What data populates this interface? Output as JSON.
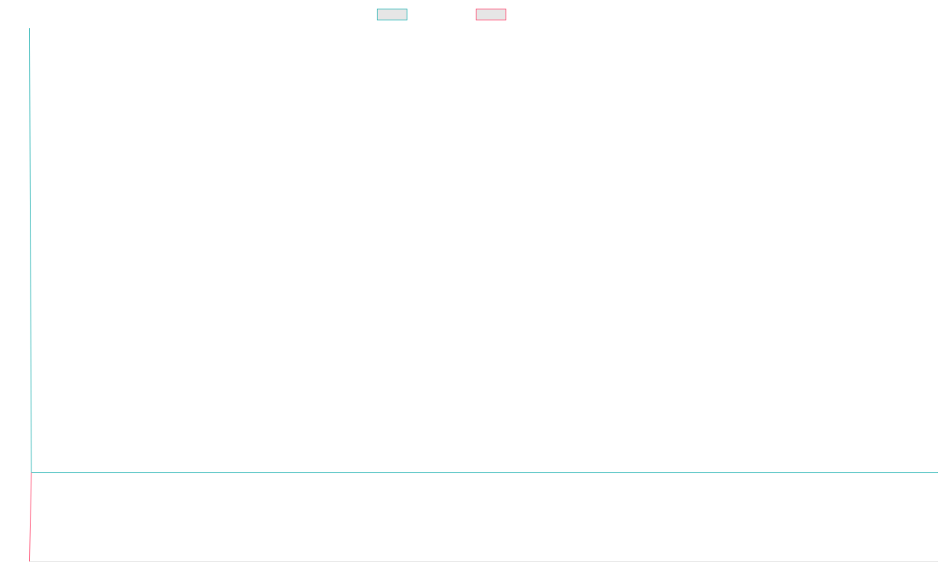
{
  "chart_data": {
    "type": "line",
    "title": "",
    "xlabel": "",
    "ylabel": "",
    "legend_position": "top-center",
    "grid": false,
    "x": [
      0,
      1
    ],
    "xlim": [
      0,
      1
    ],
    "ylim": [
      -1,
      5
    ],
    "series": [
      {
        "name": "",
        "color": "#4bc0c0",
        "values": [
          5,
          0
        ]
      },
      {
        "name": "",
        "color": "#ff6384",
        "values": [
          0,
          -1
        ]
      }
    ]
  }
}
